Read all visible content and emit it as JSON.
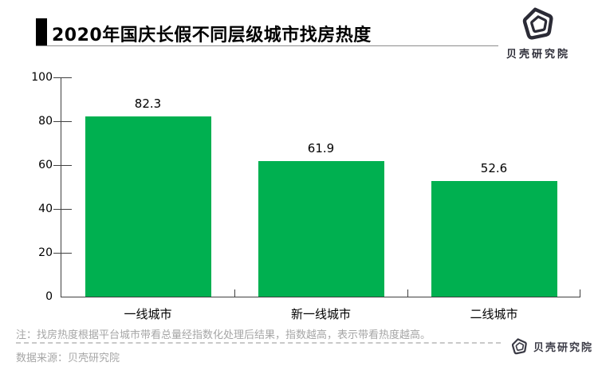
{
  "header": {
    "title": "2020年国庆长假不同层级城市找房热度"
  },
  "branding": {
    "top_logo_text": "贝壳研究院"
  },
  "chart_data": {
    "type": "bar",
    "title": "2020年国庆长假不同层级城市找房热度",
    "categories": [
      "一线城市",
      "新一线城市",
      "二线城市"
    ],
    "values": [
      82.3,
      61.9,
      52.6
    ],
    "value_labels": [
      "82.3",
      "61.9",
      "52.6"
    ],
    "xlabel": "",
    "ylabel": "",
    "ylim": [
      0,
      100
    ],
    "yticks": [
      0,
      20,
      40,
      60,
      80,
      100
    ],
    "bar_color": "#00b050",
    "axis_color": "#404040",
    "grid": false,
    "legend": false
  },
  "footer": {
    "note": "注：找房热度根据平台城市带看总量经指数化处理后结果，指数越高，表示带看热度越高。",
    "source": "数据来源：贝壳研究院",
    "bottom_logo_text": "贝壳研究院"
  }
}
